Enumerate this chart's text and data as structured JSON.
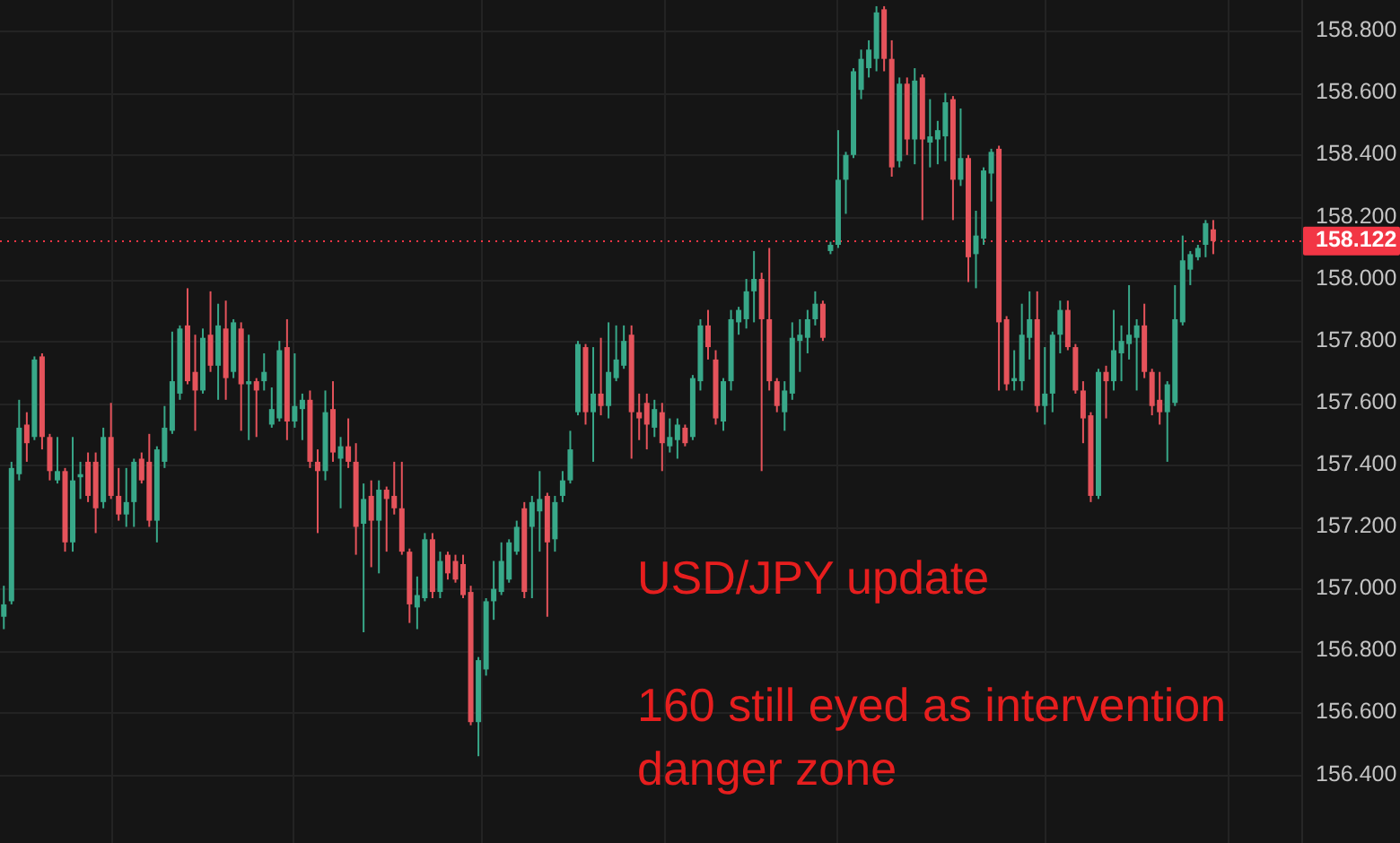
{
  "chart_data": {
    "type": "candlestick",
    "categories": [
      null,
      null,
      null,
      null,
      null,
      null,
      null,
      null,
      null,
      null,
      null,
      null,
      null,
      null,
      null,
      null,
      null,
      null,
      null,
      null,
      null,
      null,
      null,
      null,
      null,
      null,
      null,
      null,
      null,
      null,
      null,
      null,
      null,
      null,
      null,
      null,
      null,
      null,
      null,
      null,
      null,
      null,
      null,
      null,
      null,
      null,
      null,
      null,
      null,
      null,
      null,
      null,
      null,
      null,
      null,
      null,
      null,
      null,
      null,
      null,
      null,
      null,
      null,
      null,
      null,
      null,
      null,
      null,
      null,
      null,
      null,
      null,
      null,
      null,
      null,
      null,
      null,
      null,
      null,
      null,
      null,
      null,
      null,
      null,
      null,
      null,
      null,
      null,
      null,
      null,
      null,
      null,
      null,
      null,
      null,
      null,
      null,
      null,
      null,
      null,
      null,
      null,
      null,
      null,
      null,
      null,
      null,
      null,
      null,
      null,
      null,
      null,
      null,
      null,
      null,
      null,
      null,
      null,
      null,
      null,
      null,
      null,
      null,
      null,
      null,
      null,
      null,
      null,
      null,
      null,
      null,
      null,
      null,
      null,
      null,
      null,
      null,
      null,
      null,
      null,
      null,
      null,
      null,
      null,
      null,
      null,
      null,
      null,
      null,
      null,
      null,
      null,
      null,
      null,
      null,
      null,
      null,
      null,
      null,
      null,
      null,
      null,
      null,
      null,
      null,
      null,
      null,
      null,
      null,
      null
    ],
    "ohlc": [
      [
        156.91,
        157.01,
        156.87,
        156.95
      ],
      [
        156.96,
        157.41,
        156.95,
        157.39
      ],
      [
        157.37,
        157.61,
        157.35,
        157.52
      ],
      [
        157.53,
        157.57,
        157.41,
        157.47
      ],
      [
        157.49,
        157.75,
        157.48,
        157.74
      ],
      [
        157.75,
        157.76,
        157.45,
        157.49
      ],
      [
        157.49,
        157.5,
        157.35,
        157.38
      ],
      [
        157.35,
        157.49,
        157.34,
        157.38
      ],
      [
        157.38,
        157.39,
        157.12,
        157.15
      ],
      [
        157.15,
        157.49,
        157.12,
        157.35
      ],
      [
        157.36,
        157.41,
        157.29,
        157.37
      ],
      [
        157.41,
        157.44,
        157.28,
        157.3
      ],
      [
        157.41,
        157.44,
        157.18,
        157.26
      ],
      [
        157.28,
        157.52,
        157.26,
        157.49
      ],
      [
        157.49,
        157.6,
        157.29,
        157.3
      ],
      [
        157.3,
        157.39,
        157.22,
        157.24
      ],
      [
        157.24,
        157.39,
        157.2,
        157.28
      ],
      [
        157.28,
        157.42,
        157.2,
        157.41
      ],
      [
        157.42,
        157.44,
        157.34,
        157.35
      ],
      [
        157.41,
        157.5,
        157.2,
        157.22
      ],
      [
        157.22,
        157.46,
        157.15,
        157.45
      ],
      [
        157.41,
        157.59,
        157.39,
        157.52
      ],
      [
        157.51,
        157.83,
        157.5,
        157.67
      ],
      [
        157.63,
        157.85,
        157.61,
        157.84
      ],
      [
        157.85,
        157.97,
        157.66,
        157.67
      ],
      [
        157.7,
        157.82,
        157.51,
        157.64
      ],
      [
        157.64,
        157.84,
        157.63,
        157.81
      ],
      [
        157.82,
        157.96,
        157.7,
        157.72
      ],
      [
        157.72,
        157.92,
        157.61,
        157.85
      ],
      [
        157.84,
        157.93,
        157.61,
        157.68
      ],
      [
        157.7,
        157.87,
        157.68,
        157.86
      ],
      [
        157.84,
        157.86,
        157.51,
        157.66
      ],
      [
        157.66,
        157.82,
        157.48,
        157.67
      ],
      [
        157.67,
        157.68,
        157.49,
        157.64
      ],
      [
        157.67,
        157.76,
        157.64,
        157.7
      ],
      [
        157.53,
        157.65,
        157.52,
        157.58
      ],
      [
        157.55,
        157.8,
        157.54,
        157.77
      ],
      [
        157.78,
        157.87,
        157.48,
        157.54
      ],
      [
        157.54,
        157.76,
        157.52,
        157.59
      ],
      [
        157.58,
        157.63,
        157.48,
        157.61
      ],
      [
        157.61,
        157.64,
        157.39,
        157.41
      ],
      [
        157.41,
        157.45,
        157.18,
        157.38
      ],
      [
        157.38,
        157.64,
        157.35,
        157.57
      ],
      [
        157.58,
        157.67,
        157.41,
        157.44
      ],
      [
        157.42,
        157.49,
        157.26,
        157.46
      ],
      [
        157.46,
        157.55,
        157.39,
        157.41
      ],
      [
        157.41,
        157.47,
        157.11,
        157.2
      ],
      [
        157.21,
        157.34,
        156.86,
        157.29
      ],
      [
        157.3,
        157.35,
        157.07,
        157.22
      ],
      [
        157.22,
        157.35,
        157.05,
        157.32
      ],
      [
        157.32,
        157.33,
        157.12,
        157.29
      ],
      [
        157.3,
        157.41,
        157.24,
        157.26
      ],
      [
        157.26,
        157.41,
        157.11,
        157.12
      ],
      [
        157.12,
        157.13,
        156.89,
        156.95
      ],
      [
        156.94,
        157.04,
        156.87,
        156.98
      ],
      [
        156.97,
        157.18,
        156.96,
        157.16
      ],
      [
        157.16,
        157.18,
        156.97,
        156.99
      ],
      [
        156.99,
        157.12,
        156.97,
        157.09
      ],
      [
        157.11,
        157.12,
        157.03,
        157.05
      ],
      [
        157.09,
        157.11,
        157.02,
        157.03
      ],
      [
        157.08,
        157.11,
        156.97,
        156.98
      ],
      [
        156.99,
        157.01,
        156.56,
        156.57
      ],
      [
        156.57,
        156.78,
        156.46,
        156.77
      ],
      [
        156.74,
        156.97,
        156.72,
        156.96
      ],
      [
        156.96,
        157.09,
        156.9,
        157.0
      ],
      [
        156.99,
        157.15,
        156.98,
        157.09
      ],
      [
        157.03,
        157.16,
        157.02,
        157.15
      ],
      [
        157.12,
        157.22,
        157.11,
        157.2
      ],
      [
        157.26,
        157.28,
        156.97,
        156.99
      ],
      [
        157.2,
        157.3,
        156.97,
        157.28
      ],
      [
        157.25,
        157.38,
        157.12,
        157.29
      ],
      [
        157.3,
        157.31,
        156.91,
        157.15
      ],
      [
        157.16,
        157.3,
        157.12,
        157.28
      ],
      [
        157.3,
        157.38,
        157.28,
        157.35
      ],
      [
        157.35,
        157.51,
        157.34,
        157.45
      ],
      [
        157.57,
        157.8,
        157.56,
        157.79
      ],
      [
        157.78,
        157.79,
        157.53,
        157.57
      ],
      [
        157.57,
        157.78,
        157.41,
        157.63
      ],
      [
        157.63,
        157.81,
        157.56,
        157.59
      ],
      [
        157.59,
        157.86,
        157.55,
        157.7
      ],
      [
        157.68,
        157.85,
        157.67,
        157.74
      ],
      [
        157.72,
        157.85,
        157.71,
        157.8
      ],
      [
        157.82,
        157.85,
        157.42,
        157.57
      ],
      [
        157.57,
        157.63,
        157.48,
        157.55
      ],
      [
        157.6,
        157.63,
        157.45,
        157.53
      ],
      [
        157.52,
        157.61,
        157.49,
        157.58
      ],
      [
        157.57,
        157.6,
        157.38,
        157.47
      ],
      [
        157.46,
        157.55,
        157.44,
        157.49
      ],
      [
        157.48,
        157.55,
        157.42,
        157.53
      ],
      [
        157.52,
        157.53,
        157.46,
        157.47
      ],
      [
        157.49,
        157.69,
        157.48,
        157.68
      ],
      [
        157.67,
        157.87,
        157.64,
        157.85
      ],
      [
        157.85,
        157.9,
        157.74,
        157.78
      ],
      [
        157.74,
        157.77,
        157.53,
        157.55
      ],
      [
        157.54,
        157.68,
        157.51,
        157.67
      ],
      [
        157.67,
        157.9,
        157.64,
        157.87
      ],
      [
        157.86,
        157.91,
        157.82,
        157.9
      ],
      [
        157.87,
        158.0,
        157.84,
        157.96
      ],
      [
        157.96,
        158.09,
        157.86,
        158.0
      ],
      [
        158.0,
        158.02,
        157.38,
        157.87
      ],
      [
        157.87,
        158.1,
        157.64,
        157.67
      ],
      [
        157.67,
        157.68,
        157.57,
        157.59
      ],
      [
        157.57,
        157.67,
        157.51,
        157.64
      ],
      [
        157.63,
        157.86,
        157.61,
        157.81
      ],
      [
        157.8,
        157.87,
        157.7,
        157.82
      ],
      [
        157.81,
        157.9,
        157.76,
        157.87
      ],
      [
        157.87,
        157.96,
        157.85,
        157.92
      ],
      [
        157.92,
        157.93,
        157.8,
        157.81
      ],
      [
        158.09,
        158.12,
        158.08,
        158.11
      ],
      [
        158.11,
        158.48,
        158.1,
        158.32
      ],
      [
        158.32,
        158.41,
        158.21,
        158.4
      ],
      [
        158.4,
        158.68,
        158.39,
        158.67
      ],
      [
        158.61,
        158.74,
        158.58,
        158.71
      ],
      [
        158.68,
        158.77,
        158.65,
        158.74
      ],
      [
        158.71,
        158.88,
        158.67,
        158.86
      ],
      [
        158.87,
        158.88,
        158.67,
        158.71
      ],
      [
        158.71,
        158.77,
        158.33,
        158.36
      ],
      [
        158.38,
        158.65,
        158.36,
        158.63
      ],
      [
        158.63,
        158.65,
        158.4,
        158.45
      ],
      [
        158.45,
        158.68,
        158.37,
        158.64
      ],
      [
        158.65,
        158.66,
        158.19,
        158.45
      ],
      [
        158.44,
        158.58,
        158.36,
        158.46
      ],
      [
        158.45,
        158.51,
        158.37,
        158.48
      ],
      [
        158.46,
        158.6,
        158.38,
        158.57
      ],
      [
        158.58,
        158.59,
        158.19,
        158.32
      ],
      [
        158.32,
        158.55,
        158.3,
        158.39
      ],
      [
        158.39,
        158.4,
        157.99,
        158.07
      ],
      [
        158.08,
        158.22,
        157.97,
        158.14
      ],
      [
        158.13,
        158.36,
        158.11,
        158.35
      ],
      [
        158.34,
        158.42,
        158.25,
        158.41
      ],
      [
        158.42,
        158.43,
        157.64,
        157.86
      ],
      [
        157.87,
        157.88,
        157.64,
        157.66
      ],
      [
        157.67,
        157.77,
        157.64,
        157.68
      ],
      [
        157.67,
        157.92,
        157.64,
        157.82
      ],
      [
        157.81,
        157.96,
        157.74,
        157.87
      ],
      [
        157.87,
        157.96,
        157.57,
        157.59
      ],
      [
        157.59,
        157.78,
        157.53,
        157.63
      ],
      [
        157.63,
        157.83,
        157.57,
        157.82
      ],
      [
        157.82,
        157.93,
        157.76,
        157.9
      ],
      [
        157.9,
        157.93,
        157.77,
        157.78
      ],
      [
        157.78,
        157.79,
        157.63,
        157.64
      ],
      [
        157.64,
        157.67,
        157.47,
        157.55
      ],
      [
        157.56,
        157.57,
        157.28,
        157.3
      ],
      [
        157.3,
        157.71,
        157.29,
        157.7
      ],
      [
        157.7,
        157.72,
        157.55,
        157.67
      ],
      [
        157.67,
        157.9,
        157.64,
        157.77
      ],
      [
        157.76,
        157.85,
        157.67,
        157.8
      ],
      [
        157.79,
        157.98,
        157.74,
        157.82
      ],
      [
        157.81,
        157.87,
        157.64,
        157.85
      ],
      [
        157.85,
        157.92,
        157.68,
        157.7
      ],
      [
        157.7,
        157.71,
        157.56,
        157.59
      ],
      [
        157.61,
        157.7,
        157.53,
        157.57
      ],
      [
        157.57,
        157.67,
        157.41,
        157.66
      ],
      [
        157.6,
        157.98,
        157.59,
        157.87
      ],
      [
        157.86,
        158.14,
        157.85,
        158.06
      ],
      [
        158.03,
        158.09,
        157.98,
        158.08
      ],
      [
        158.07,
        158.11,
        158.06,
        158.1
      ],
      [
        158.11,
        158.19,
        158.07,
        158.18
      ],
      [
        158.16,
        158.19,
        158.08,
        158.122
      ],
      null,
      null,
      null,
      null,
      null,
      null,
      null,
      null,
      null,
      null,
      null
    ],
    "colors": [
      "#38a889",
      "#38a889",
      "#38a889",
      "#e5535b",
      "#38a889",
      "#e5535b",
      "#e5535b",
      "#38a889",
      "#e5535b",
      "#38a889",
      "#38a889",
      "#e5535b",
      "#e5535b",
      "#38a889",
      "#e5535b",
      "#e5535b",
      "#38a889",
      "#38a889",
      "#e5535b",
      "#e5535b",
      "#38a889",
      "#38a889",
      "#38a889",
      "#38a889",
      "#e5535b",
      "#e5535b",
      "#38a889",
      "#e5535b",
      "#38a889",
      "#e5535b",
      "#38a889",
      "#e5535b",
      "#38a889",
      "#e5535b",
      "#38a889",
      "#38a889",
      "#38a889",
      "#e5535b",
      "#38a889",
      "#38a889",
      "#e5535b",
      "#e5535b",
      "#38a889",
      "#e5535b",
      "#38a889",
      "#e5535b",
      "#e5535b",
      "#38a889",
      "#e5535b",
      "#38a889",
      "#e5535b",
      "#e5535b",
      "#e5535b",
      "#e5535b",
      "#38a889",
      "#38a889",
      "#e5535b",
      "#38a889",
      "#e5535b",
      "#e5535b",
      "#e5535b",
      "#e5535b",
      "#38a889",
      "#38a889",
      "#38a889",
      "#38a889",
      "#38a889",
      "#38a889",
      "#e5535b",
      "#38a889",
      "#38a889",
      "#e5535b",
      "#38a889",
      "#38a889",
      "#38a889",
      "#38a889",
      "#e5535b",
      "#38a889",
      "#e5535b",
      "#38a889",
      "#38a889",
      "#38a889",
      "#e5535b",
      "#e5535b",
      "#e5535b",
      "#38a889",
      "#e5535b",
      "#38a889",
      "#38a889",
      "#e5535b",
      "#38a889",
      "#38a889",
      "#e5535b",
      "#e5535b",
      "#38a889",
      "#38a889",
      "#38a889",
      "#38a889",
      "#38a889",
      "#e5535b",
      "#e5535b",
      "#e5535b",
      "#38a889",
      "#38a889",
      "#38a889",
      "#38a889",
      "#38a889",
      "#e5535b",
      "#38a889",
      "#38a889",
      "#38a889",
      "#38a889",
      "#38a889",
      "#38a889",
      "#38a889",
      "#e5535b",
      "#e5535b",
      "#38a889",
      "#e5535b",
      "#38a889",
      "#e5535b",
      "#38a889",
      "#38a889",
      "#38a889",
      "#e5535b",
      "#38a889",
      "#e5535b",
      "#38a889",
      "#38a889",
      "#38a889",
      "#e5535b",
      "#e5535b",
      "#38a889",
      "#38a889",
      "#38a889",
      "#e5535b",
      "#38a889",
      "#38a889",
      "#38a889",
      "#e5535b",
      "#e5535b",
      "#e5535b",
      "#e5535b",
      "#38a889",
      "#e5535b",
      "#38a889",
      "#38a889",
      "#38a889",
      "#38a889",
      "#e5535b",
      "#e5535b",
      "#e5535b",
      "#38a889",
      "#38a889",
      "#38a889",
      "#38a889",
      "#38a889",
      "#38a889",
      "#e5535b",
      null,
      null,
      null,
      null,
      null,
      null,
      null,
      null,
      null,
      null,
      null
    ],
    "ylim": [
      156.18,
      158.9
    ],
    "yticks": [
      {
        "value": 156.4,
        "label": "156.400"
      },
      {
        "value": 156.6,
        "label": "156.600"
      },
      {
        "value": 156.8,
        "label": "156.800"
      },
      {
        "value": 157.0,
        "label": "157.000"
      },
      {
        "value": 157.2,
        "label": "157.200"
      },
      {
        "value": 157.4,
        "label": "157.400"
      },
      {
        "value": 157.6,
        "label": "157.600"
      },
      {
        "value": 157.8,
        "label": "157.800"
      },
      {
        "value": 158.0,
        "label": "158.000"
      },
      {
        "value": 158.2,
        "label": "158.200"
      },
      {
        "value": 158.4,
        "label": "158.400"
      },
      {
        "value": 158.6,
        "label": "158.600"
      },
      {
        "value": 158.8,
        "label": "158.800"
      }
    ],
    "grid": "y",
    "tick_labels": "y",
    "ref_lines": [
      {
        "axis": "y",
        "value": 158.122,
        "label": "158.122",
        "color": "#f23645",
        "line_style": "dotted"
      }
    ],
    "annotations": [
      "USD/JPY update",
      "160 still eyed as intervention danger zone"
    ]
  }
}
